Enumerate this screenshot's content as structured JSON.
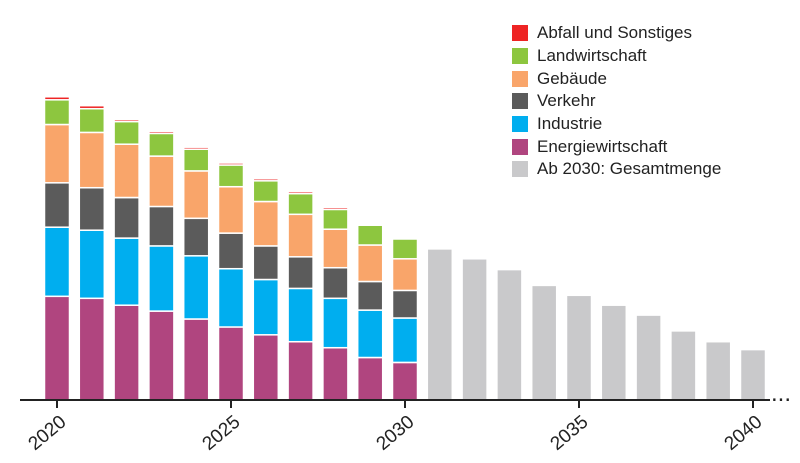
{
  "chart_data": {
    "type": "bar",
    "stacked": true,
    "title": "",
    "xlabel": "",
    "ylabel": "",
    "x": [
      2020,
      2021,
      2022,
      2023,
      2024,
      2025,
      2026,
      2027,
      2028,
      2029,
      2030,
      2031,
      2032,
      2033,
      2034,
      2035,
      2036,
      2037,
      2038,
      2039,
      2040
    ],
    "x_tick_labels": [
      "2020",
      "2025",
      "2030",
      "2035",
      "2040"
    ],
    "ylim": [
      0,
      320
    ],
    "grid": false,
    "legend_position": "top-right",
    "series": [
      {
        "name": "Energiewirtschaft",
        "color": "#b0457f",
        "values": [
          105,
          103,
          96,
          90,
          82,
          74,
          66,
          59,
          53,
          43,
          38,
          null,
          null,
          null,
          null,
          null,
          null,
          null,
          null,
          null,
          null
        ]
      },
      {
        "name": "Industrie",
        "color": "#00aeef",
        "values": [
          70,
          69,
          68,
          66,
          64,
          59,
          56,
          54,
          50,
          48,
          45,
          null,
          null,
          null,
          null,
          null,
          null,
          null,
          null,
          null,
          null
        ]
      },
      {
        "name": "Verkehr",
        "color": "#5b5b5b",
        "values": [
          45,
          43,
          41,
          40,
          38,
          36,
          34,
          32,
          31,
          29,
          28,
          null,
          null,
          null,
          null,
          null,
          null,
          null,
          null,
          null,
          null
        ]
      },
      {
        "name": "Gebäude",
        "color": "#f9a56a",
        "values": [
          59,
          56,
          54,
          51,
          48,
          47,
          45,
          43,
          39,
          37,
          32,
          null,
          null,
          null,
          null,
          null,
          null,
          null,
          null,
          null,
          null
        ]
      },
      {
        "name": "Landwirtschaft",
        "color": "#8dc63f",
        "values": [
          25,
          24,
          23,
          23,
          22,
          22,
          21,
          21,
          20,
          20,
          20,
          null,
          null,
          null,
          null,
          null,
          null,
          null,
          null,
          null,
          null
        ]
      },
      {
        "name": "Abfall und Sonstiges",
        "color": "#ee2424",
        "values": [
          3,
          3,
          2,
          2,
          2,
          2,
          2,
          2,
          2,
          1,
          0,
          null,
          null,
          null,
          null,
          null,
          null,
          null,
          null,
          null,
          null
        ]
      },
      {
        "name": "Ab 2030: Gesamtmenge",
        "color": "#c9c9cb",
        "values": [
          null,
          null,
          null,
          null,
          null,
          null,
          null,
          null,
          null,
          null,
          null,
          153,
          143,
          132,
          116,
          106,
          96,
          86,
          70,
          59,
          51
        ]
      }
    ]
  },
  "legend": {
    "items": [
      {
        "label": "Abfall und Sonstiges",
        "color": "#ee2424"
      },
      {
        "label": "Landwirtschaft",
        "color": "#8dc63f"
      },
      {
        "label": "Gebäude",
        "color": "#f9a56a"
      },
      {
        "label": "Verkehr",
        "color": "#5b5b5b"
      },
      {
        "label": "Industrie",
        "color": "#00aeef"
      },
      {
        "label": "Energiewirtschaft",
        "color": "#b0457f"
      },
      {
        "label": "Ab 2030: Gesamtmenge",
        "color": "#c9c9cb"
      }
    ]
  },
  "continuation_mark": "..."
}
